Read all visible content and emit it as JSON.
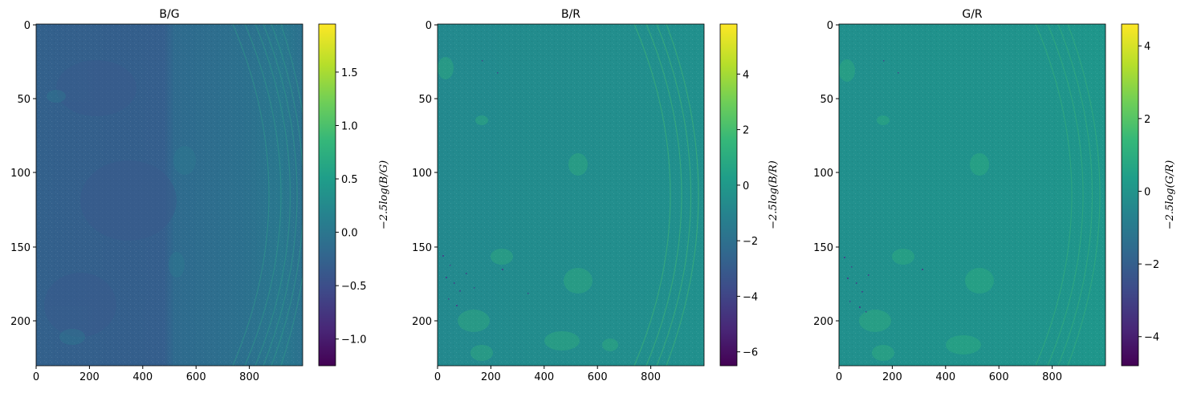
{
  "chart_data": [
    {
      "type": "heatmap",
      "title": "B/G",
      "colormap": "viridis",
      "x_ticks": [
        "0",
        "200",
        "400",
        "600",
        "800"
      ],
      "y_ticks": [
        "0",
        "50",
        "100",
        "150",
        "200"
      ],
      "xlim": [
        0,
        1000
      ],
      "ylim": [
        231,
        0
      ],
      "colorbar": {
        "label": "−2.5log(B/G)",
        "range": [
          -1.25,
          1.95
        ],
        "ticks": [
          "−1.0",
          "−0.5",
          "0.0",
          "0.5",
          "1.0",
          "1.5"
        ],
        "tick_values": [
          -1.0,
          -0.5,
          0.0,
          0.5,
          1.0,
          1.5
        ]
      },
      "typical_value": -0.25
    },
    {
      "type": "heatmap",
      "title": "B/R",
      "colormap": "viridis",
      "x_ticks": [
        "0",
        "200",
        "400",
        "600",
        "800"
      ],
      "y_ticks": [
        "0",
        "50",
        "100",
        "150",
        "200"
      ],
      "xlim": [
        0,
        1000
      ],
      "ylim": [
        231,
        0
      ],
      "colorbar": {
        "label": "−2.5log(B/R)",
        "range": [
          -6.5,
          5.8
        ],
        "ticks": [
          "−6",
          "−4",
          "−2",
          "0",
          "2",
          "4"
        ],
        "tick_values": [
          -6,
          -4,
          -2,
          0,
          2,
          4
        ]
      },
      "typical_value": -0.3
    },
    {
      "type": "heatmap",
      "title": "G/R",
      "colormap": "viridis",
      "x_ticks": [
        "0",
        "200",
        "400",
        "600",
        "800"
      ],
      "y_ticks": [
        "0",
        "50",
        "100",
        "150",
        "200"
      ],
      "xlim": [
        0,
        1000
      ],
      "ylim": [
        231,
        0
      ],
      "colorbar": {
        "label": "−2.5log(G/R)",
        "range": [
          -4.8,
          4.6
        ],
        "ticks": [
          "−4",
          "−2",
          "0",
          "2",
          "4"
        ],
        "tick_values": [
          -4,
          -2,
          0,
          2,
          4
        ]
      },
      "typical_value": -0.3
    }
  ]
}
